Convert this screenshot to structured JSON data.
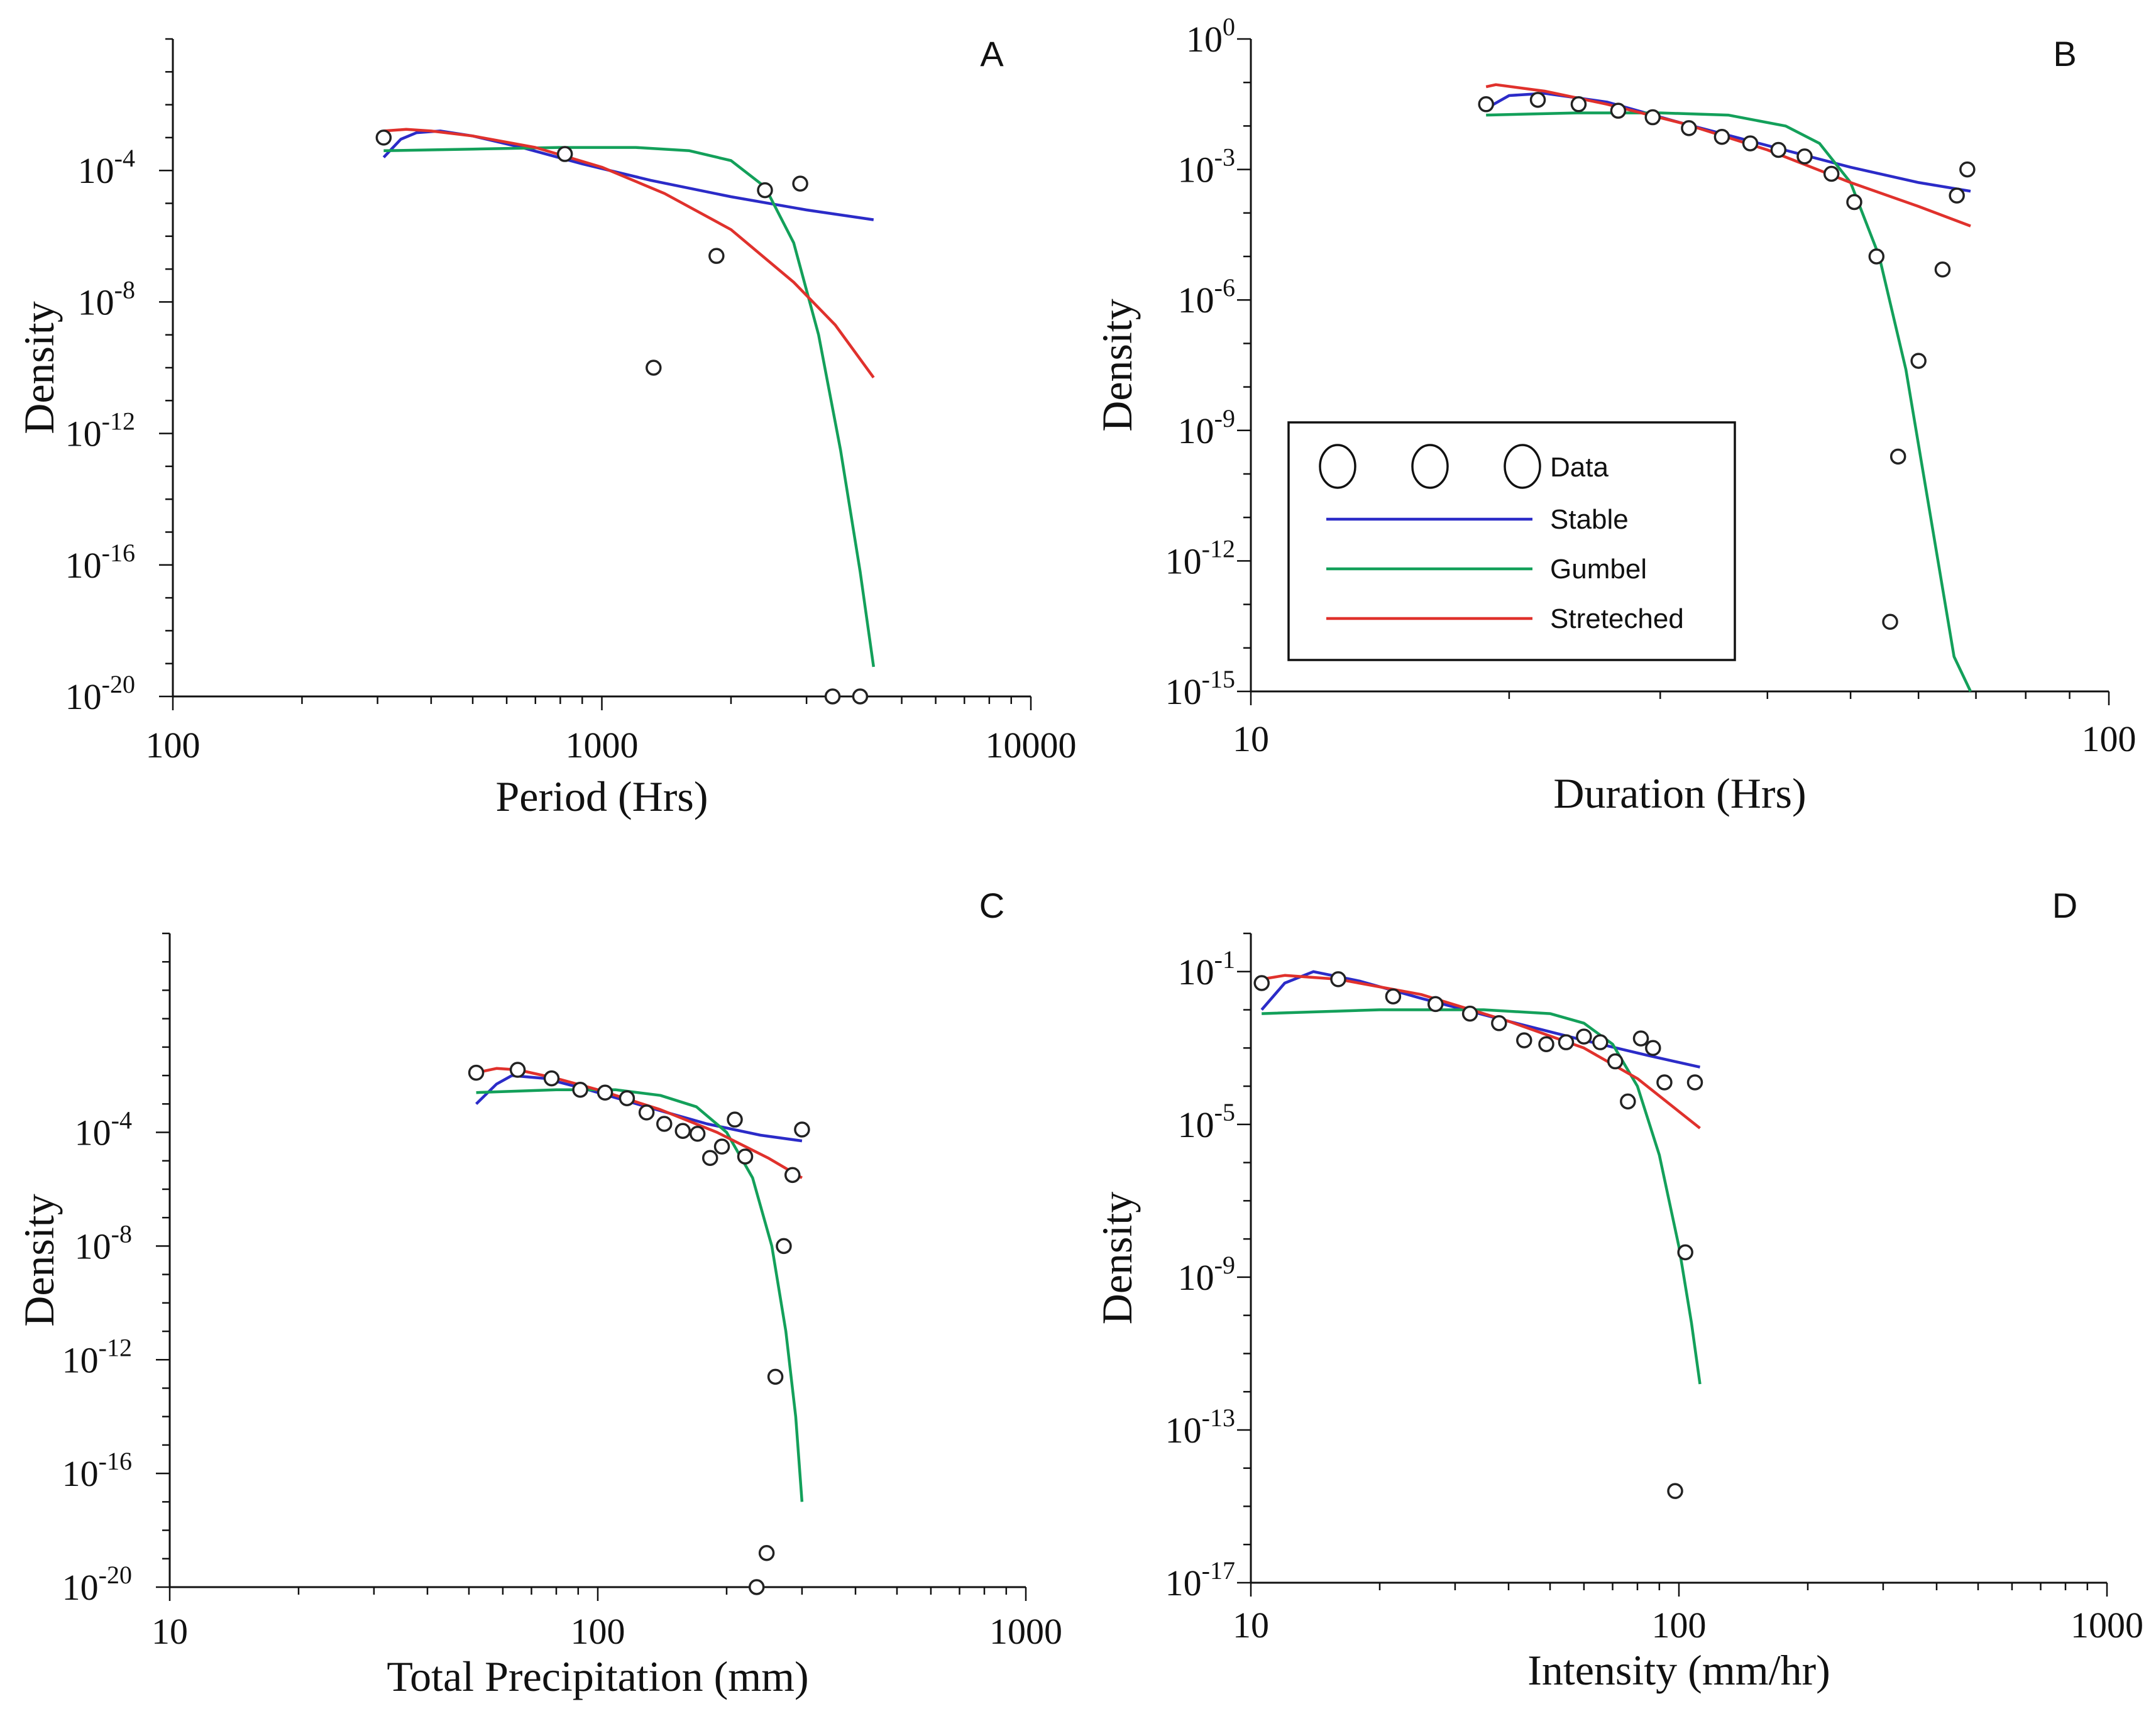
{
  "series_styles": [
    {
      "name": "Stable",
      "color": "#2b2bc8"
    },
    {
      "name": "Gumbel",
      "color": "#13a05a"
    },
    {
      "name": "Streteched",
      "color": "#e0312c"
    }
  ],
  "legend": {
    "data_label": "Data",
    "entries": [
      "Stable",
      "Gumbel",
      "Streteched"
    ],
    "placement": "panel-B lower-left"
  },
  "chart_data": [
    {
      "type": "scatter",
      "panel": "A",
      "xlabel": "Period (Hrs)",
      "ylabel": "Density",
      "xscale": "log",
      "yscale": "log",
      "xlim": [
        100,
        10000
      ],
      "ylim_exp": [
        -20,
        0
      ],
      "x_tick_labels": [
        "100",
        "1000",
        "10000"
      ],
      "x_tick_values": [
        100,
        1000,
        10000
      ],
      "y_tick_exps": [
        -4,
        -8,
        -12,
        -16,
        -20
      ],
      "data_points": [
        {
          "x": 310,
          "y_exp": -3.0
        },
        {
          "x": 820,
          "y_exp": -3.5
        },
        {
          "x": 1320,
          "y_exp": -10.0
        },
        {
          "x": 1850,
          "y_exp": -6.6
        },
        {
          "x": 2400,
          "y_exp": -4.6
        },
        {
          "x": 2900,
          "y_exp": -4.4
        },
        {
          "x": 3450,
          "y_exp": -20.0
        },
        {
          "x": 4000,
          "y_exp": -20.0
        }
      ],
      "series": [
        {
          "name": "Stable",
          "points": [
            [
              310,
              -3.6
            ],
            [
              340,
              -3.05
            ],
            [
              370,
              -2.85
            ],
            [
              420,
              -2.8
            ],
            [
              500,
              -2.95
            ],
            [
              650,
              -3.3
            ],
            [
              900,
              -3.8
            ],
            [
              1300,
              -4.3
            ],
            [
              2000,
              -4.8
            ],
            [
              3000,
              -5.2
            ],
            [
              4300,
              -5.5
            ]
          ]
        },
        {
          "name": "Gumbel",
          "points": [
            [
              310,
              -3.4
            ],
            [
              500,
              -3.35
            ],
            [
              800,
              -3.3
            ],
            [
              1200,
              -3.3
            ],
            [
              1600,
              -3.4
            ],
            [
              2000,
              -3.7
            ],
            [
              2400,
              -4.5
            ],
            [
              2800,
              -6.2
            ],
            [
              3200,
              -9.0
            ],
            [
              3600,
              -12.5
            ],
            [
              4000,
              -16.2
            ],
            [
              4300,
              -19.1
            ]
          ]
        },
        {
          "name": "Streteched",
          "points": [
            [
              310,
              -2.8
            ],
            [
              350,
              -2.75
            ],
            [
              400,
              -2.8
            ],
            [
              500,
              -2.95
            ],
            [
              700,
              -3.3
            ],
            [
              1000,
              -3.9
            ],
            [
              1400,
              -4.7
            ],
            [
              2000,
              -5.8
            ],
            [
              2800,
              -7.4
            ],
            [
              3500,
              -8.7
            ],
            [
              4300,
              -10.3
            ]
          ]
        }
      ]
    },
    {
      "type": "scatter",
      "panel": "B",
      "xlabel": "Duration (Hrs)",
      "ylabel": "Density",
      "xscale": "log",
      "yscale": "log",
      "xlim": [
        10,
        100
      ],
      "ylim_exp": [
        -15,
        0
      ],
      "x_tick_labels": [
        "10",
        "100"
      ],
      "x_tick_values": [
        10,
        100
      ],
      "y_tick_exps": [
        0,
        -3,
        -6,
        -9,
        -12,
        -15
      ],
      "data_points": [
        {
          "x": 18.8,
          "y_exp": -1.5
        },
        {
          "x": 21.6,
          "y_exp": -1.4
        },
        {
          "x": 24.1,
          "y_exp": -1.5
        },
        {
          "x": 26.8,
          "y_exp": -1.65
        },
        {
          "x": 29.4,
          "y_exp": -1.8
        },
        {
          "x": 32.4,
          "y_exp": -2.05
        },
        {
          "x": 35.4,
          "y_exp": -2.25
        },
        {
          "x": 38.2,
          "y_exp": -2.4
        },
        {
          "x": 41.2,
          "y_exp": -2.55
        },
        {
          "x": 44.2,
          "y_exp": -2.7
        },
        {
          "x": 47.5,
          "y_exp": -3.1
        },
        {
          "x": 50.5,
          "y_exp": -3.75
        },
        {
          "x": 53.6,
          "y_exp": -5.0
        },
        {
          "x": 56.8,
          "y_exp": -9.6
        },
        {
          "x": 60.0,
          "y_exp": -7.4
        },
        {
          "x": 64.0,
          "y_exp": -5.3
        },
        {
          "x": 66.5,
          "y_exp": -3.6
        },
        {
          "x": 68.4,
          "y_exp": -3.0
        },
        {
          "x": 55.6,
          "y_exp": -13.4
        }
      ],
      "series": [
        {
          "name": "Stable",
          "points": [
            [
              18.8,
              -1.6
            ],
            [
              20.0,
              -1.3
            ],
            [
              22.0,
              -1.25
            ],
            [
              26.0,
              -1.45
            ],
            [
              32.0,
              -1.95
            ],
            [
              40.0,
              -2.45
            ],
            [
              50.0,
              -2.95
            ],
            [
              60.0,
              -3.3
            ],
            [
              69.0,
              -3.5
            ]
          ]
        },
        {
          "name": "Gumbel",
          "points": [
            [
              18.8,
              -1.75
            ],
            [
              24.0,
              -1.7
            ],
            [
              30.0,
              -1.7
            ],
            [
              36.0,
              -1.75
            ],
            [
              42.0,
              -2.0
            ],
            [
              46.0,
              -2.4
            ],
            [
              50.0,
              -3.3
            ],
            [
              54.0,
              -5.0
            ],
            [
              58.0,
              -7.6
            ],
            [
              62.0,
              -11.0
            ],
            [
              66.0,
              -14.2
            ],
            [
              69.0,
              -15.0
            ]
          ]
        },
        {
          "name": "Streteched",
          "points": [
            [
              18.8,
              -1.1
            ],
            [
              19.3,
              -1.05
            ],
            [
              22.0,
              -1.2
            ],
            [
              26.0,
              -1.5
            ],
            [
              32.0,
              -1.95
            ],
            [
              40.0,
              -2.55
            ],
            [
              50.0,
              -3.3
            ],
            [
              60.0,
              -3.85
            ],
            [
              69.0,
              -4.3
            ]
          ]
        }
      ]
    },
    {
      "type": "scatter",
      "panel": "C",
      "xlabel": "Total Precipitation (mm)",
      "ylabel": "Density",
      "xscale": "log",
      "yscale": "log",
      "xlim": [
        10,
        1000
      ],
      "ylim_exp": [
        -20,
        3
      ],
      "x_tick_labels": [
        "10",
        "100",
        "1000"
      ],
      "x_tick_values": [
        10,
        100,
        1000
      ],
      "y_tick_exps": [
        -4,
        -8,
        -12,
        -16,
        -20
      ],
      "data_points": [
        {
          "x": 52,
          "y_exp": -1.9
        },
        {
          "x": 65,
          "y_exp": -1.8
        },
        {
          "x": 78,
          "y_exp": -2.1
        },
        {
          "x": 91,
          "y_exp": -2.5
        },
        {
          "x": 104,
          "y_exp": -2.6
        },
        {
          "x": 117,
          "y_exp": -2.8
        },
        {
          "x": 130,
          "y_exp": -3.3
        },
        {
          "x": 143,
          "y_exp": -3.7
        },
        {
          "x": 158,
          "y_exp": -3.95
        },
        {
          "x": 171,
          "y_exp": -4.05
        },
        {
          "x": 183,
          "y_exp": -4.9
        },
        {
          "x": 195,
          "y_exp": -4.5
        },
        {
          "x": 209,
          "y_exp": -3.55
        },
        {
          "x": 221,
          "y_exp": -4.85
        },
        {
          "x": 235,
          "y_exp": -20.0
        },
        {
          "x": 248,
          "y_exp": -18.8
        },
        {
          "x": 260,
          "y_exp": -12.6
        },
        {
          "x": 272,
          "y_exp": -8.0
        },
        {
          "x": 285,
          "y_exp": -5.5
        },
        {
          "x": 300,
          "y_exp": -3.9
        }
      ],
      "series": [
        {
          "name": "Stable",
          "points": [
            [
              52,
              -3.0
            ],
            [
              58,
              -2.3
            ],
            [
              63,
              -2.0
            ],
            [
              75,
              -2.1
            ],
            [
              95,
              -2.5
            ],
            [
              130,
              -3.1
            ],
            [
              180,
              -3.7
            ],
            [
              240,
              -4.1
            ],
            [
              300,
              -4.3
            ]
          ]
        },
        {
          "name": "Gumbel",
          "points": [
            [
              52,
              -2.6
            ],
            [
              80,
              -2.5
            ],
            [
              110,
              -2.5
            ],
            [
              140,
              -2.7
            ],
            [
              170,
              -3.1
            ],
            [
              200,
              -4.0
            ],
            [
              230,
              -5.6
            ],
            [
              255,
              -8.0
            ],
            [
              275,
              -11.0
            ],
            [
              290,
              -14.0
            ],
            [
              300,
              -17.0
            ]
          ]
        },
        {
          "name": "Streteched",
          "points": [
            [
              52,
              -1.9
            ],
            [
              58,
              -1.75
            ],
            [
              65,
              -1.8
            ],
            [
              80,
              -2.1
            ],
            [
              100,
              -2.5
            ],
            [
              140,
              -3.2
            ],
            [
              190,
              -4.0
            ],
            [
              250,
              -4.9
            ],
            [
              300,
              -5.6
            ]
          ]
        }
      ]
    },
    {
      "type": "scatter",
      "panel": "D",
      "xlabel": "Intensity (mm/hr)",
      "ylabel": "Density",
      "xscale": "log",
      "yscale": "log",
      "xlim": [
        10,
        1000
      ],
      "ylim_exp": [
        -17,
        0
      ],
      "x_tick_labels": [
        "10",
        "100",
        "1000"
      ],
      "x_tick_values": [
        10,
        100,
        1000
      ],
      "y_tick_exps": [
        -1,
        -5,
        -9,
        -13,
        -17
      ],
      "data_points": [
        {
          "x": 10.6,
          "y_exp": -1.3
        },
        {
          "x": 16.0,
          "y_exp": -1.2
        },
        {
          "x": 21.5,
          "y_exp": -1.65
        },
        {
          "x": 27.0,
          "y_exp": -1.85
        },
        {
          "x": 32.5,
          "y_exp": -2.1
        },
        {
          "x": 38.0,
          "y_exp": -2.35
        },
        {
          "x": 43.5,
          "y_exp": -2.8
        },
        {
          "x": 49.0,
          "y_exp": -2.9
        },
        {
          "x": 54.5,
          "y_exp": -2.85
        },
        {
          "x": 60.0,
          "y_exp": -2.7
        },
        {
          "x": 65.5,
          "y_exp": -2.85
        },
        {
          "x": 71.0,
          "y_exp": -3.35
        },
        {
          "x": 76.0,
          "y_exp": -4.4
        },
        {
          "x": 81.5,
          "y_exp": -2.75
        },
        {
          "x": 87.0,
          "y_exp": -3.0
        },
        {
          "x": 92.5,
          "y_exp": -3.9
        },
        {
          "x": 98.0,
          "y_exp": -14.6
        },
        {
          "x": 103.5,
          "y_exp": -8.35
        },
        {
          "x": 109.0,
          "y_exp": -3.9
        }
      ],
      "series": [
        {
          "name": "Stable",
          "points": [
            [
              10.6,
              -2.0
            ],
            [
              12.0,
              -1.3
            ],
            [
              14.0,
              -1.0
            ],
            [
              18.0,
              -1.25
            ],
            [
              25.0,
              -1.7
            ],
            [
              40.0,
              -2.3
            ],
            [
              60.0,
              -2.8
            ],
            [
              85.0,
              -3.2
            ],
            [
              112.0,
              -3.5
            ]
          ]
        },
        {
          "name": "Gumbel",
          "points": [
            [
              10.6,
              -2.1
            ],
            [
              20.0,
              -2.0
            ],
            [
              35.0,
              -2.0
            ],
            [
              50.0,
              -2.1
            ],
            [
              60.0,
              -2.35
            ],
            [
              70.0,
              -2.9
            ],
            [
              80.0,
              -4.0
            ],
            [
              90.0,
              -5.8
            ],
            [
              100.0,
              -8.2
            ],
            [
              107.0,
              -10.2
            ],
            [
              112.0,
              -11.8
            ]
          ]
        },
        {
          "name": "Streteched",
          "points": [
            [
              10.6,
              -1.2
            ],
            [
              12.0,
              -1.1
            ],
            [
              16.0,
              -1.2
            ],
            [
              25.0,
              -1.6
            ],
            [
              40.0,
              -2.3
            ],
            [
              60.0,
              -3.0
            ],
            [
              80.0,
              -3.8
            ],
            [
              112.0,
              -5.1
            ]
          ]
        }
      ]
    }
  ]
}
